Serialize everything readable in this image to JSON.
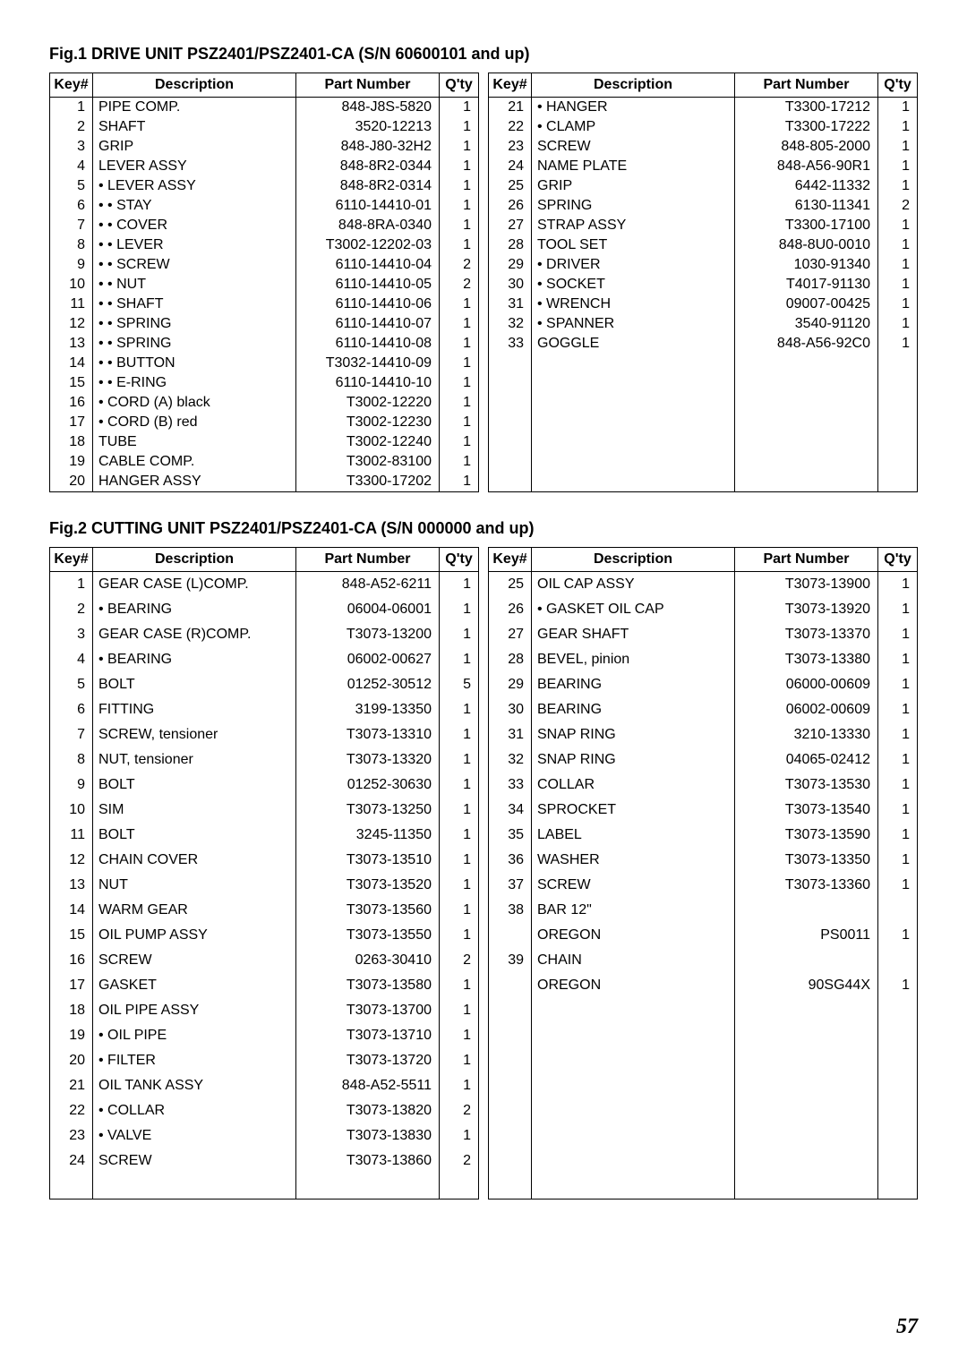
{
  "page_number": "57",
  "fig1": {
    "title": "Fig.1 DRIVE UNIT  PSZ2401/PSZ2401-CA (S/N 60600101 and up)",
    "headers": [
      "Key#",
      "Description",
      "Part Number",
      "Q'ty"
    ],
    "left": [
      {
        "k": "1",
        "d": "PIPE COMP.",
        "p": "848-J8S-5820",
        "q": "1"
      },
      {
        "k": "2",
        "d": "SHAFT",
        "p": "3520-12213",
        "q": "1"
      },
      {
        "k": "3",
        "d": "GRIP",
        "p": "848-J80-32H2",
        "q": "1"
      },
      {
        "k": "4",
        "d": "LEVER ASSY",
        "p": "848-8R2-0344",
        "q": "1"
      },
      {
        "k": "5",
        "d": "• LEVER ASSY",
        "p": "848-8R2-0314",
        "q": "1"
      },
      {
        "k": "6",
        "d": "• • STAY",
        "p": "6110-14410-01",
        "q": "1"
      },
      {
        "k": "7",
        "d": "• • COVER",
        "p": "848-8RA-0340",
        "q": "1"
      },
      {
        "k": "8",
        "d": "• • LEVER",
        "p": "T3002-12202-03",
        "q": "1"
      },
      {
        "k": "9",
        "d": "• • SCREW",
        "p": "6110-14410-04",
        "q": "2"
      },
      {
        "k": "10",
        "d": "• • NUT",
        "p": "6110-14410-05",
        "q": "2"
      },
      {
        "k": "11",
        "d": "• • SHAFT",
        "p": "6110-14410-06",
        "q": "1"
      },
      {
        "k": "12",
        "d": "• • SPRING",
        "p": "6110-14410-07",
        "q": "1"
      },
      {
        "k": "13",
        "d": "• • SPRING",
        "p": "6110-14410-08",
        "q": "1"
      },
      {
        "k": "14",
        "d": "• • BUTTON",
        "p": "T3032-14410-09",
        "q": "1"
      },
      {
        "k": "15",
        "d": "• • E-RING",
        "p": "6110-14410-10",
        "q": "1"
      },
      {
        "k": "16",
        "d": "• CORD (A) black",
        "p": "T3002-12220",
        "q": "1"
      },
      {
        "k": "17",
        "d": "• CORD (B) red",
        "p": "T3002-12230",
        "q": "1"
      },
      {
        "k": "18",
        "d": "TUBE",
        "p": "T3002-12240",
        "q": "1"
      },
      {
        "k": "19",
        "d": "CABLE COMP.",
        "p": "T3002-83100",
        "q": "1"
      },
      {
        "k": "20",
        "d": "HANGER ASSY",
        "p": "T3300-17202",
        "q": "1"
      }
    ],
    "right": [
      {
        "k": "21",
        "d": "• HANGER",
        "p": "T3300-17212",
        "q": "1"
      },
      {
        "k": "22",
        "d": "• CLAMP",
        "p": "T3300-17222",
        "q": "1"
      },
      {
        "k": "23",
        "d": "SCREW",
        "p": "848-805-2000",
        "q": "1"
      },
      {
        "k": "24",
        "d": "NAME PLATE",
        "p": "848-A56-90R1",
        "q": "1"
      },
      {
        "k": "25",
        "d": "GRIP",
        "p": "6442-11332",
        "q": "1"
      },
      {
        "k": "26",
        "d": "SPRING",
        "p": "6130-11341",
        "q": "2"
      },
      {
        "k": "27",
        "d": "STRAP ASSY",
        "p": "T3300-17100",
        "q": "1"
      },
      {
        "k": "28",
        "d": "TOOL SET",
        "p": "848-8U0-0010",
        "q": "1"
      },
      {
        "k": "29",
        "d": "• DRIVER",
        "p": "1030-91340",
        "q": "1"
      },
      {
        "k": "30",
        "d": "• SOCKET",
        "p": "T4017-91130",
        "q": "1"
      },
      {
        "k": "31",
        "d": "• WRENCH",
        "p": "09007-00425",
        "q": "1"
      },
      {
        "k": "32",
        "d": "• SPANNER",
        "p": "3540-91120",
        "q": "1"
      },
      {
        "k": "33",
        "d": "GOGGLE",
        "p": "848-A56-92C0",
        "q": "1"
      },
      {
        "k": "",
        "d": "",
        "p": "",
        "q": ""
      },
      {
        "k": "",
        "d": "",
        "p": "",
        "q": ""
      },
      {
        "k": "",
        "d": "",
        "p": "",
        "q": ""
      },
      {
        "k": "",
        "d": "",
        "p": "",
        "q": ""
      },
      {
        "k": "",
        "d": "",
        "p": "",
        "q": ""
      },
      {
        "k": "",
        "d": "",
        "p": "",
        "q": ""
      },
      {
        "k": "",
        "d": "",
        "p": "",
        "q": ""
      }
    ]
  },
  "fig2": {
    "title": "Fig.2 CUTTING UNIT  PSZ2401/PSZ2401-CA (S/N 000000 and up)",
    "headers": [
      "Key#",
      "Description",
      "Part Number",
      "Q'ty"
    ],
    "left": [
      {
        "k": "1",
        "d": "GEAR CASE (L)COMP.",
        "p": "848-A52-6211",
        "q": "1"
      },
      {
        "k": "2",
        "d": "• BEARING",
        "p": "06004-06001",
        "q": "1"
      },
      {
        "k": "3",
        "d": "GEAR CASE (R)COMP.",
        "p": "T3073-13200",
        "q": "1"
      },
      {
        "k": "4",
        "d": "• BEARING",
        "p": "06002-00627",
        "q": "1"
      },
      {
        "k": "5",
        "d": "BOLT",
        "p": "01252-30512",
        "q": "5"
      },
      {
        "k": "6",
        "d": "FITTING",
        "p": "3199-13350",
        "q": "1"
      },
      {
        "k": "7",
        "d": "SCREW, tensioner",
        "p": "T3073-13310",
        "q": "1"
      },
      {
        "k": "8",
        "d": "NUT, tensioner",
        "p": "T3073-13320",
        "q": "1"
      },
      {
        "k": "9",
        "d": "BOLT",
        "p": "01252-30630",
        "q": "1"
      },
      {
        "k": "10",
        "d": "SIM",
        "p": "T3073-13250",
        "q": "1"
      },
      {
        "k": "11",
        "d": "BOLT",
        "p": "3245-11350",
        "q": "1"
      },
      {
        "k": "12",
        "d": "CHAIN COVER",
        "p": "T3073-13510",
        "q": "1"
      },
      {
        "k": "13",
        "d": "NUT",
        "p": "T3073-13520",
        "q": "1"
      },
      {
        "k": "14",
        "d": "WARM GEAR",
        "p": "T3073-13560",
        "q": "1"
      },
      {
        "k": "15",
        "d": "OIL PUMP ASSY",
        "p": "T3073-13550",
        "q": "1"
      },
      {
        "k": "16",
        "d": "SCREW",
        "p": "0263-30410",
        "q": "2"
      },
      {
        "k": "17",
        "d": "GASKET",
        "p": "T3073-13580",
        "q": "1"
      },
      {
        "k": "18",
        "d": "OIL PIPE ASSY",
        "p": "T3073-13700",
        "q": "1"
      },
      {
        "k": "19",
        "d": "• OIL PIPE",
        "p": "T3073-13710",
        "q": "1"
      },
      {
        "k": "20",
        "d": "• FILTER",
        "p": "T3073-13720",
        "q": "1"
      },
      {
        "k": "21",
        "d": "OIL TANK ASSY",
        "p": "848-A52-5511",
        "q": "1"
      },
      {
        "k": "22",
        "d": "• COLLAR",
        "p": "T3073-13820",
        "q": "2"
      },
      {
        "k": "23",
        "d": "• VALVE",
        "p": "T3073-13830",
        "q": "1"
      },
      {
        "k": "24",
        "d": "SCREW",
        "p": "T3073-13860",
        "q": "2"
      },
      {
        "k": "",
        "d": "",
        "p": "",
        "q": ""
      }
    ],
    "right": [
      {
        "k": "25",
        "d": "OIL CAP ASSY",
        "p": "T3073-13900",
        "q": "1"
      },
      {
        "k": "26",
        "d": "• GASKET OIL CAP",
        "p": "T3073-13920",
        "q": "1"
      },
      {
        "k": "27",
        "d": "GEAR SHAFT",
        "p": "T3073-13370",
        "q": "1"
      },
      {
        "k": "28",
        "d": "BEVEL, pinion",
        "p": "T3073-13380",
        "q": "1"
      },
      {
        "k": "29",
        "d": "BEARING",
        "p": "06000-00609",
        "q": "1"
      },
      {
        "k": "30",
        "d": "BEARING",
        "p": "06002-00609",
        "q": "1"
      },
      {
        "k": "31",
        "d": "SNAP RING",
        "p": "3210-13330",
        "q": "1"
      },
      {
        "k": "32",
        "d": "SNAP RING",
        "p": "04065-02412",
        "q": "1"
      },
      {
        "k": "33",
        "d": "COLLAR",
        "p": "T3073-13530",
        "q": "1"
      },
      {
        "k": "34",
        "d": "SPROCKET",
        "p": "T3073-13540",
        "q": "1"
      },
      {
        "k": "35",
        "d": "LABEL",
        "p": "T3073-13590",
        "q": "1"
      },
      {
        "k": "36",
        "d": "WASHER",
        "p": "T3073-13350",
        "q": "1"
      },
      {
        "k": "37",
        "d": "SCREW",
        "p": "T3073-13360",
        "q": "1"
      },
      {
        "k": "38",
        "d": "BAR 12\"",
        "p": "",
        "q": ""
      },
      {
        "k": "",
        "d": "OREGON",
        "p": "PS0011",
        "q": "1"
      },
      {
        "k": "39",
        "d": "CHAIN",
        "p": "",
        "q": ""
      },
      {
        "k": "",
        "d": "OREGON",
        "p": "90SG44X",
        "q": "1"
      },
      {
        "k": "",
        "d": "",
        "p": "",
        "q": ""
      },
      {
        "k": "",
        "d": "",
        "p": "",
        "q": ""
      },
      {
        "k": "",
        "d": "",
        "p": "",
        "q": ""
      },
      {
        "k": "",
        "d": "",
        "p": "",
        "q": ""
      },
      {
        "k": "",
        "d": "",
        "p": "",
        "q": ""
      },
      {
        "k": "",
        "d": "",
        "p": "",
        "q": ""
      },
      {
        "k": "",
        "d": "",
        "p": "",
        "q": ""
      },
      {
        "k": "",
        "d": "",
        "p": "",
        "q": ""
      }
    ]
  }
}
